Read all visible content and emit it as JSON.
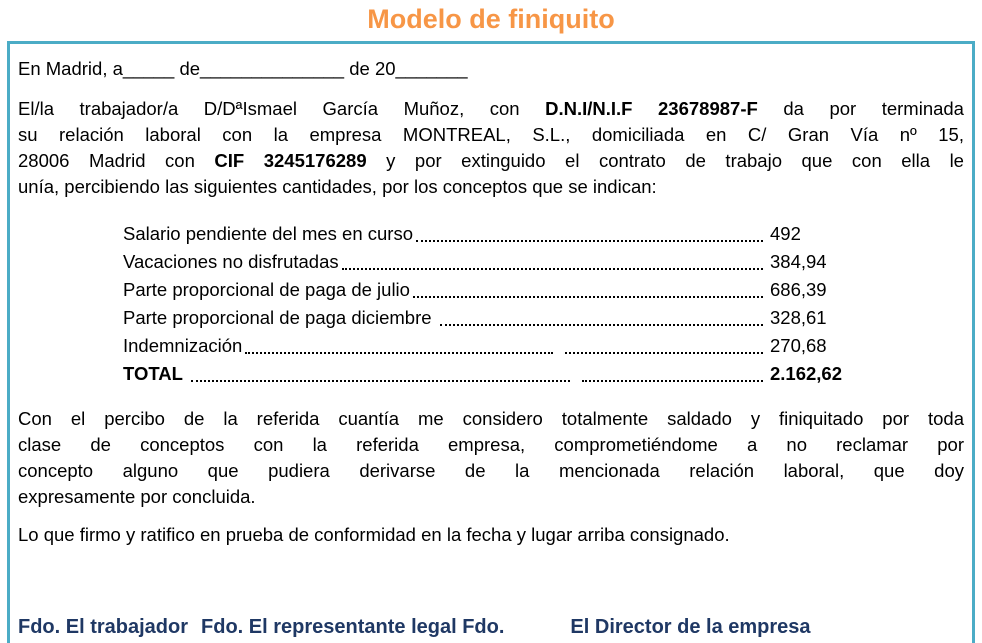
{
  "page": {
    "title": "Modelo de finiquito"
  },
  "colors": {
    "title_orange": "#F79646",
    "box_border_blue": "#4BACC6",
    "body_text": "#000000",
    "signature_navy": "#1F3864"
  },
  "date_line": "En Madrid, a_____ de______________ de 20_______",
  "intro": {
    "lines": [
      {
        "a": "El/la trabajador/a D/DªIsmael García Muñoz, con ",
        "b": "D.N.I/N.I.F 23678987-F",
        "c": " da por terminada"
      },
      {
        "a": "su relación laboral con la empresa MONTREAL, S.L., domiciliada en C/ Gran Vía nº 15,"
      },
      {
        "a": "28006 Madrid con ",
        "b": "CIF 3245176289",
        "c": " y por extinguido el contrato de trabajo que con ella le"
      },
      {
        "a": "unía, percibiendo las siguientes cantidades, por los conceptos que se indican:"
      }
    ]
  },
  "amounts": {
    "rows": [
      {
        "label": "Salario pendiente del mes en curso",
        "value": "492"
      },
      {
        "label": "Vacaciones no disfrutadas",
        "value": "384,94"
      },
      {
        "label": "Parte proporcional de paga de julio",
        "value": "686,39"
      },
      {
        "label": "Parte proporcional de paga diciembre ",
        "value": "328,61"
      },
      {
        "label": "Indemnización",
        "value": "270,68"
      },
      {
        "label": "TOTAL ",
        "value": "2.162,62"
      }
    ]
  },
  "closing": {
    "lines": [
      "Con el percibo de la referida cuantía me considero totalmente saldado y finiquitado por toda",
      "clase de conceptos con la referida empresa, comprometiéndome a no reclamar por",
      "concepto alguno que pudiera derivarse de la mencionada relación laboral, que doy",
      "expresamente por concluida."
    ]
  },
  "confirmation": "Lo que firmo y ratifico en prueba de conformidad en la fecha y lugar arriba consignado.",
  "signatures": {
    "worker": "Fdo. El trabajador",
    "representative": "Fdo. El representante legal Fdo.",
    "director": "El Director de la empresa"
  }
}
